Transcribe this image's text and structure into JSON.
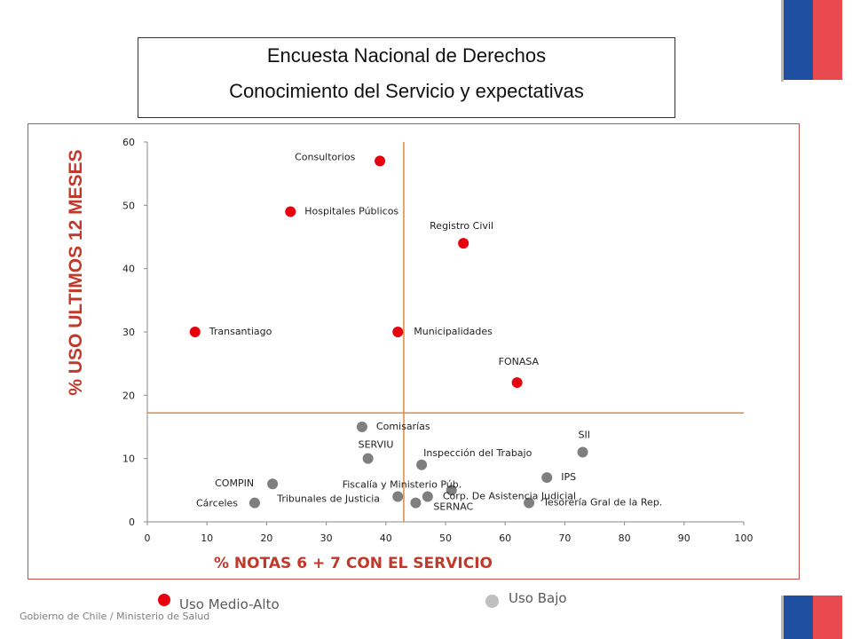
{
  "header": {
    "title_line1": "Encuesta Nacional de Derechos",
    "title_line2": "Conocimiento del Servicio y expectativas"
  },
  "legend": {
    "high_label": "Uso Medio-Alto",
    "low_label": "Uso Bajo",
    "high_color": "#e8000d",
    "low_color": "#a6a6a6"
  },
  "footer": {
    "text": "Gobierno de Chile / Ministerio de Salud"
  },
  "colors": {
    "flag_blue": "#1f4fa0",
    "flag_red": "#e84a4f",
    "reference_line": "#e08a3c",
    "ylabel": "#c0392b",
    "xlabel": "#c0392b",
    "point_high": "#e8000d",
    "point_low": "#7f7f7f"
  },
  "chart_data": {
    "type": "scatter",
    "xlabel": "% NOTAS 6 + 7 CON EL SERVICIO",
    "ylabel": "% USO ULTIMOS 12 MESES",
    "xlim": [
      0,
      100
    ],
    "ylim": [
      0,
      60
    ],
    "xticks": [
      0,
      10,
      20,
      30,
      40,
      50,
      60,
      70,
      80,
      90,
      100
    ],
    "yticks": [
      0,
      10,
      20,
      30,
      40,
      50,
      60
    ],
    "reference_lines": {
      "x": 43,
      "y": 17.2
    },
    "grid": false,
    "series": [
      {
        "name": "Uso Medio-Alto",
        "points": [
          {
            "label": "Consultorios",
            "x": 39,
            "y": 57
          },
          {
            "label": "Hospitales Públicos",
            "x": 24,
            "y": 49
          },
          {
            "label": "Registro Civil",
            "x": 53,
            "y": 44
          },
          {
            "label": "Transantiago",
            "x": 8,
            "y": 30
          },
          {
            "label": "Municipalidades",
            "x": 42,
            "y": 30
          },
          {
            "label": "FONASA",
            "x": 62,
            "y": 22
          }
        ]
      },
      {
        "name": "Uso Bajo",
        "points": [
          {
            "label": "Comisarías",
            "x": 36,
            "y": 15
          },
          {
            "label": "SII",
            "x": 73,
            "y": 11
          },
          {
            "label": "SERVIU",
            "x": 37,
            "y": 10
          },
          {
            "label": "Inspección del Trabajo",
            "x": 46,
            "y": 9
          },
          {
            "label": "IPS",
            "x": 67,
            "y": 7
          },
          {
            "label": "COMPIN",
            "x": 21,
            "y": 6
          },
          {
            "label": "Fiscalía y Ministerio Púb.",
            "x": 51,
            "y": 5
          },
          {
            "label": "Corp. De Asistencia Judicial",
            "x": 47,
            "y": 4
          },
          {
            "label": "Tribunales de Justicia",
            "x": 42,
            "y": 4
          },
          {
            "label": "Cárceles",
            "x": 18,
            "y": 3
          },
          {
            "label": "SERNAC",
            "x": 45,
            "y": 3
          },
          {
            "label": "Tesorería Gral de la Rep.",
            "x": 64,
            "y": 3
          }
        ]
      }
    ]
  }
}
